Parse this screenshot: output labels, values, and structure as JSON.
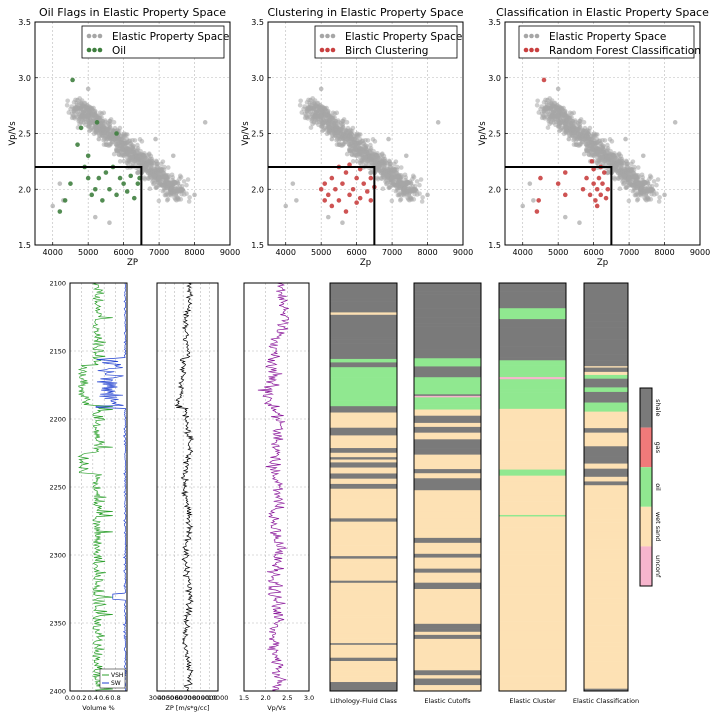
{
  "chart_data": [
    {
      "type": "scatter",
      "title": "Oil Flags in Elastic Property Space",
      "xlabel": "ZP",
      "ylabel": "Vp/Vs",
      "xlim": [
        3500,
        9000
      ],
      "ylim": [
        1.5,
        3.5
      ],
      "xticks": [
        "4000",
        "5000",
        "6000",
        "7000",
        "8000",
        "9000"
      ],
      "yticks": [
        "1.5",
        "2.0",
        "2.5",
        "3.0",
        "3.5"
      ],
      "grid": true,
      "legend": "top-right",
      "cutoff": {
        "zp": 6500,
        "vpvs": 2.2
      },
      "series": [
        {
          "name": "Elastic Property Space",
          "color": "#a6a6a6",
          "cloud": true,
          "values": [
            [
              4000,
              1.85
            ],
            [
              4200,
              2.05
            ],
            [
              4600,
              2.7
            ],
            [
              4700,
              2.8
            ],
            [
              4800,
              2.6
            ],
            [
              5000,
              2.9
            ],
            [
              5100,
              2.55
            ],
            [
              5300,
              2.45
            ],
            [
              5500,
              2.4
            ],
            [
              5800,
              2.35
            ],
            [
              6000,
              2.3
            ],
            [
              6300,
              2.25
            ],
            [
              6600,
              2.2
            ],
            [
              7000,
              2.1
            ],
            [
              7300,
              2.05
            ],
            [
              7600,
              2.0
            ],
            [
              8000,
              1.95
            ],
            [
              8300,
              2.6
            ],
            [
              7400,
              2.3
            ],
            [
              6900,
              2.45
            ],
            [
              4300,
              1.9
            ],
            [
              5200,
              1.75
            ],
            [
              5600,
              1.7
            ]
          ]
        },
        {
          "name": "Oil",
          "color": "#3f7f3f",
          "values": [
            [
              4200,
              1.8
            ],
            [
              4350,
              1.9
            ],
            [
              4500,
              2.05
            ],
            [
              4560,
              2.98
            ],
            [
              4700,
              2.4
            ],
            [
              4800,
              2.55
            ],
            [
              4900,
              2.2
            ],
            [
              5000,
              2.1
            ],
            [
              5100,
              1.95
            ],
            [
              5200,
              2.0
            ],
            [
              5300,
              2.1
            ],
            [
              5400,
              1.9
            ],
            [
              5500,
              2.15
            ],
            [
              5600,
              2.0
            ],
            [
              5700,
              2.2
            ],
            [
              5800,
              1.95
            ],
            [
              5900,
              2.1
            ],
            [
              6000,
              2.05
            ],
            [
              6100,
              1.98
            ],
            [
              6200,
              2.12
            ],
            [
              6300,
              1.92
            ],
            [
              6400,
              2.05
            ],
            [
              5250,
              2.6
            ],
            [
              5800,
              2.5
            ],
            [
              5000,
              2.3
            ],
            [
              6450,
              2.1
            ]
          ]
        }
      ]
    },
    {
      "type": "scatter",
      "title": "Clustering in Elastic Property Space",
      "xlabel": "Zp",
      "ylabel": "Vp/Vs",
      "xlim": [
        3500,
        9000
      ],
      "ylim": [
        1.5,
        3.5
      ],
      "xticks": [
        "4000",
        "5000",
        "6000",
        "7000",
        "8000",
        "9000"
      ],
      "yticks": [
        "1.5",
        "2.0",
        "2.5",
        "3.0",
        "3.5"
      ],
      "grid": true,
      "legend": "top-right",
      "cutoff": {
        "zp": 6500,
        "vpvs": 2.2
      },
      "series": [
        {
          "name": "Elastic Property Space",
          "color": "#a6a6a6",
          "cloud": true,
          "values": [
            [
              4000,
              1.85
            ],
            [
              4200,
              2.05
            ],
            [
              4600,
              2.7
            ],
            [
              4700,
              2.8
            ],
            [
              4800,
              2.6
            ],
            [
              5000,
              2.9
            ],
            [
              5100,
              2.55
            ],
            [
              5300,
              2.45
            ],
            [
              5500,
              2.4
            ],
            [
              5800,
              2.35
            ],
            [
              6000,
              2.3
            ],
            [
              6300,
              2.25
            ],
            [
              6600,
              2.2
            ],
            [
              7000,
              2.1
            ],
            [
              7300,
              2.05
            ],
            [
              7600,
              2.0
            ],
            [
              8000,
              1.95
            ],
            [
              8300,
              2.6
            ],
            [
              7400,
              2.3
            ],
            [
              6900,
              2.45
            ],
            [
              4300,
              1.9
            ],
            [
              5200,
              1.75
            ],
            [
              5600,
              1.7
            ]
          ]
        },
        {
          "name": "Birch Clustering",
          "color": "#c94040",
          "values": [
            [
              5000,
              2.0
            ],
            [
              5100,
              2.05
            ],
            [
              5200,
              1.95
            ],
            [
              5300,
              2.1
            ],
            [
              5400,
              2.0
            ],
            [
              5500,
              1.9
            ],
            [
              5600,
              2.05
            ],
            [
              5700,
              2.15
            ],
            [
              5800,
              1.95
            ],
            [
              5900,
              2.0
            ],
            [
              6000,
              2.1
            ],
            [
              6100,
              1.92
            ],
            [
              6200,
              2.05
            ],
            [
              6300,
              1.98
            ],
            [
              6400,
              2.1
            ],
            [
              5500,
              2.2
            ],
            [
              5800,
              2.22
            ],
            [
              6100,
              2.18
            ],
            [
              5300,
              1.85
            ],
            [
              6000,
              1.88
            ],
            [
              5700,
              1.8
            ],
            [
              6400,
              1.9
            ],
            [
              5100,
              1.9
            ],
            [
              6500,
              2.02
            ]
          ]
        }
      ]
    },
    {
      "type": "scatter",
      "title": "Classification in Elastic Property Space",
      "xlabel": "Zp",
      "ylabel": "Vp/Vs",
      "xlim": [
        3500,
        9000
      ],
      "ylim": [
        1.5,
        3.5
      ],
      "xticks": [
        "4000",
        "5000",
        "6000",
        "7000",
        "8000",
        "9000"
      ],
      "yticks": [
        "1.5",
        "2.0",
        "2.5",
        "3.0",
        "3.5"
      ],
      "grid": true,
      "legend": "top-right",
      "cutoff": {
        "zp": 6500,
        "vpvs": 2.2
      },
      "series": [
        {
          "name": "Elastic Property Space",
          "color": "#a6a6a6",
          "cloud": true,
          "values": [
            [
              4000,
              1.85
            ],
            [
              4200,
              2.05
            ],
            [
              4600,
              2.7
            ],
            [
              4700,
              2.8
            ],
            [
              4800,
              2.6
            ],
            [
              5000,
              2.9
            ],
            [
              5100,
              2.55
            ],
            [
              5300,
              2.45
            ],
            [
              5500,
              2.4
            ],
            [
              5800,
              2.35
            ],
            [
              6000,
              2.3
            ],
            [
              6300,
              2.25
            ],
            [
              6600,
              2.2
            ],
            [
              7000,
              2.1
            ],
            [
              7300,
              2.05
            ],
            [
              7600,
              2.0
            ],
            [
              8000,
              1.95
            ],
            [
              8300,
              2.6
            ],
            [
              7400,
              2.3
            ],
            [
              6900,
              2.45
            ],
            [
              4300,
              1.9
            ],
            [
              5200,
              1.75
            ],
            [
              5600,
              1.7
            ]
          ]
        },
        {
          "name": "Random Forest Classification",
          "color": "#c94040",
          "values": [
            [
              4600,
              2.98
            ],
            [
              4500,
              2.1
            ],
            [
              4400,
              1.8
            ],
            [
              4450,
              1.9
            ],
            [
              5000,
              2.05
            ],
            [
              5200,
              1.95
            ],
            [
              5700,
              2.0
            ],
            [
              5800,
              2.1
            ],
            [
              5900,
              1.95
            ],
            [
              6000,
              2.05
            ],
            [
              6050,
              1.9
            ],
            [
              6100,
              2.0
            ],
            [
              6150,
              2.1
            ],
            [
              6200,
              1.95
            ],
            [
              6250,
              2.05
            ],
            [
              6300,
              2.15
            ],
            [
              6350,
              1.92
            ],
            [
              6400,
              2.0
            ],
            [
              6100,
              1.85
            ],
            [
              6000,
              2.18
            ],
            [
              6200,
              2.2
            ],
            [
              5200,
              2.15
            ],
            [
              5950,
              2.25
            ]
          ]
        }
      ]
    },
    {
      "type": "line",
      "title": "",
      "xlabel": "Volume %",
      "ylabel": "",
      "xlim": [
        0.0,
        1.0
      ],
      "ylim": [
        2400,
        2100
      ],
      "xticks": [
        "0.0",
        "0.2",
        "0.4",
        "0.6",
        "0.8"
      ],
      "yticks": [
        "2100",
        "2150",
        "2200",
        "2250",
        "2300",
        "2350",
        "2400"
      ],
      "legend": "bottom-right",
      "series": [
        {
          "name": "VSH",
          "color": "#2ca02c"
        },
        {
          "name": "SW",
          "color": "#1f3fd0"
        }
      ]
    },
    {
      "type": "line",
      "title": "",
      "xlabel": "ZP [m/s*g/cc]",
      "xlim": [
        3000,
        10000
      ],
      "ylim": [
        2400,
        2100
      ],
      "xticks": [
        "3000",
        "4000",
        "5000",
        "6000",
        "7000",
        "8000",
        "9000",
        "10000"
      ],
      "series": [
        {
          "color": "#000000"
        }
      ]
    },
    {
      "type": "line",
      "title": "",
      "xlabel": "Vp/Vs",
      "xlim": [
        1.5,
        3.0
      ],
      "ylim": [
        2400,
        2100
      ],
      "xticks": [
        "1.5",
        "2.0",
        "2.5",
        "3.0"
      ],
      "series": [
        {
          "color": "#8b1a9b"
        }
      ]
    },
    {
      "type": "heatmap",
      "title": "",
      "tracks": [
        "Lithology-Fluid Class",
        "Elastic Cutoffs",
        "Elastic Cluster",
        "Elastic Classification"
      ],
      "ylim": [
        2400,
        2100
      ],
      "classes": [
        {
          "name": "shale",
          "color": "#7a7a7a"
        },
        {
          "name": "gas",
          "color": "#f07a7a"
        },
        {
          "name": "oil",
          "color": "#90e890"
        },
        {
          "name": "wet sand",
          "color": "#fde1b4"
        },
        {
          "name": "unconf",
          "color": "#f7b5cd"
        }
      ],
      "legend": "right"
    }
  ]
}
